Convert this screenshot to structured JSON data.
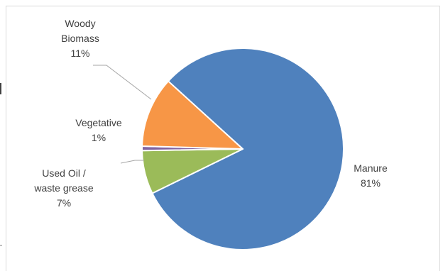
{
  "chart_data": {
    "type": "pie",
    "title": "",
    "slices": [
      {
        "label_lines": [
          "Manure"
        ],
        "pct_label": "81%",
        "value": 81,
        "color": "#4f81bd"
      },
      {
        "label_lines": [
          "Used Oil /",
          "waste grease"
        ],
        "pct_label": "7%",
        "value": 7,
        "color": "#9bbb59"
      },
      {
        "label_lines": [
          "Vegetative"
        ],
        "pct_label": "1%",
        "value": 0.7,
        "color": "#8064a2"
      },
      {
        "label_lines": [
          "Woody",
          "Biomass"
        ],
        "pct_label": "11%",
        "value": 11.3,
        "color": "#f79646"
      }
    ],
    "legend": "none"
  }
}
